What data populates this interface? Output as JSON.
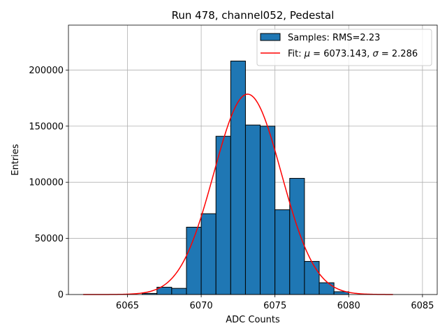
{
  "chart_data": {
    "type": "bar",
    "title": "Run 478, channel052, Pedestal",
    "xlabel": "ADC Counts",
    "ylabel": "Entries",
    "xlim": [
      6061,
      6086
    ],
    "ylim": [
      0,
      240000
    ],
    "xticks": [
      6065,
      6070,
      6075,
      6080,
      6085
    ],
    "xtick_labels": [
      "6065",
      "6070",
      "6075",
      "6080",
      "6085"
    ],
    "yticks": [
      0,
      50000,
      100000,
      150000,
      200000
    ],
    "ytick_labels": [
      "0",
      "50000",
      "100000",
      "150000",
      "200000"
    ],
    "grid": true,
    "legend_position": "top-right",
    "histogram": {
      "name": "Samples: RMS=2.23",
      "bin_width": 1,
      "bin_edges_start": [
        6066,
        6067,
        6068,
        6069,
        6070,
        6071,
        6072,
        6073,
        6074,
        6075,
        6076,
        6077,
        6078,
        6079
      ],
      "values": [
        1000,
        6500,
        5500,
        60000,
        72000,
        141000,
        208000,
        151000,
        150000,
        75500,
        103500,
        29500,
        10500,
        2500
      ],
      "color": "#1f77b4",
      "edge_color": "#000000"
    },
    "fit": {
      "name": "Fit: $\\mu$ = 6073.143, $\\sigma$ = 2.286",
      "legend_prefix": "Fit: ",
      "mu_symbol": "μ",
      "mu_text": " = 6073.143, ",
      "sigma_symbol": "σ",
      "sigma_text": " = 2.286",
      "mu": 6073.143,
      "sigma": 2.286,
      "amplitude": 178500,
      "x_range": [
        6062,
        6083
      ],
      "color": "#ff0000"
    }
  }
}
